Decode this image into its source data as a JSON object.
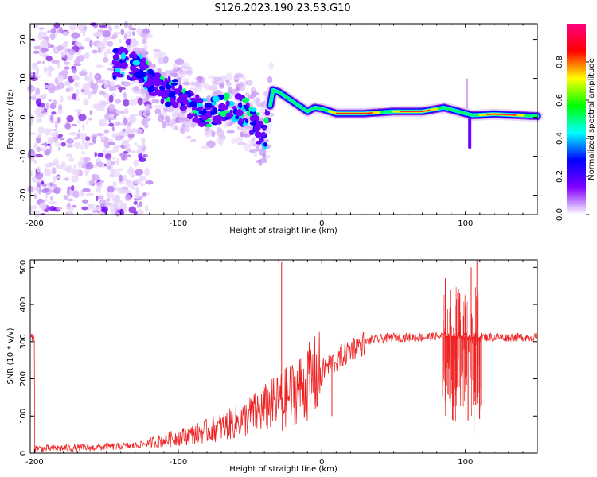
{
  "title": "S126.2023.190.23.53.G10",
  "chart_data": [
    {
      "type": "heatmap",
      "xlabel": "Height of straight line (km)",
      "ylabel": "Frequency (Hz)",
      "xlim": [
        -203,
        150
      ],
      "ylim": [
        -25,
        24
      ],
      "x_ticks": [
        -200,
        -100,
        0,
        100
      ],
      "y_ticks": [
        -20,
        -10,
        0,
        10,
        20
      ],
      "colorbar": {
        "label": "Normalized spectral amplitude",
        "range": [
          0,
          1
        ],
        "ticks": [
          0.0,
          0.2,
          0.4,
          0.6,
          0.8
        ],
        "colors": [
          "#ffffff",
          "#8000ff",
          "#0000ff",
          "#00ffff",
          "#00ff00",
          "#ffff00",
          "#ff0000",
          "#ff0080"
        ]
      },
      "ridge": [
        {
          "x": -140,
          "y": 14
        },
        {
          "x": -130,
          "y": 13
        },
        {
          "x": -120,
          "y": 10
        },
        {
          "x": -110,
          "y": 7
        },
        {
          "x": -100,
          "y": 6
        },
        {
          "x": -90,
          "y": 3
        },
        {
          "x": -80,
          "y": 1
        },
        {
          "x": -70,
          "y": 2
        },
        {
          "x": -60,
          "y": 3
        },
        {
          "x": -50,
          "y": 0
        },
        {
          "x": -40,
          "y": -5
        },
        {
          "x": -36,
          "y": 3
        },
        {
          "x": -34,
          "y": 7
        },
        {
          "x": -30,
          "y": 6.5
        },
        {
          "x": -20,
          "y": 4
        },
        {
          "x": -10,
          "y": 1.5
        },
        {
          "x": -5,
          "y": 2.5
        },
        {
          "x": 0,
          "y": 2.2
        },
        {
          "x": 10,
          "y": 1
        },
        {
          "x": 30,
          "y": 1
        },
        {
          "x": 50,
          "y": 1.5
        },
        {
          "x": 70,
          "y": 1.5
        },
        {
          "x": 85,
          "y": 2.5
        },
        {
          "x": 95,
          "y": 1.5
        },
        {
          "x": 105,
          "y": 0.5
        },
        {
          "x": 120,
          "y": 0.8
        },
        {
          "x": 150,
          "y": 0.3
        }
      ]
    },
    {
      "type": "line",
      "xlabel": "Height of straight line (km)",
      "ylabel": "SNR (10 * v/v)",
      "xlim": [
        -203,
        150
      ],
      "ylim": [
        0,
        520
      ],
      "x_ticks": [
        -200,
        -100,
        0,
        100
      ],
      "y_ticks": [
        0,
        100,
        200,
        300,
        400,
        500
      ],
      "color": "#ee2222",
      "trend": [
        {
          "x": -200,
          "y": 12
        },
        {
          "x": -160,
          "y": 15
        },
        {
          "x": -130,
          "y": 20
        },
        {
          "x": -110,
          "y": 35
        },
        {
          "x": -90,
          "y": 50
        },
        {
          "x": -70,
          "y": 70
        },
        {
          "x": -55,
          "y": 90
        },
        {
          "x": -45,
          "y": 110
        },
        {
          "x": -35,
          "y": 130
        },
        {
          "x": -25,
          "y": 150
        },
        {
          "x": -15,
          "y": 175
        },
        {
          "x": -5,
          "y": 205
        },
        {
          "x": 5,
          "y": 235
        },
        {
          "x": 15,
          "y": 265
        },
        {
          "x": 25,
          "y": 290
        },
        {
          "x": 35,
          "y": 305
        },
        {
          "x": 50,
          "y": 312
        },
        {
          "x": 70,
          "y": 312
        },
        {
          "x": 90,
          "y": 315
        },
        {
          "x": 110,
          "y": 312
        },
        {
          "x": 130,
          "y": 312
        },
        {
          "x": 150,
          "y": 312
        }
      ],
      "spikes": [
        {
          "x": -28,
          "y": 515
        },
        {
          "x": -27.5,
          "y": 60
        },
        {
          "x": 7,
          "y": 100
        },
        {
          "x": 86,
          "y": 470
        },
        {
          "x": 91,
          "y": 90
        },
        {
          "x": 96,
          "y": 430
        },
        {
          "x": 104,
          "y": 500
        },
        {
          "x": 106,
          "y": 55
        },
        {
          "x": 108,
          "y": 520
        },
        {
          "x": 110,
          "y": 120
        }
      ]
    }
  ]
}
